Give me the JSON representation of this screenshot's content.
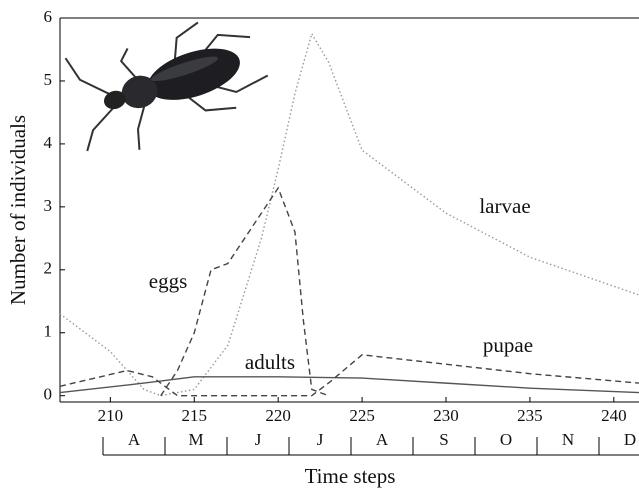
{
  "chart_data": {
    "type": "line",
    "xlabel": "Time steps",
    "ylabel": "Number of individuals",
    "xlim": [
      207,
      241.5
    ],
    "ylim": [
      -0.1,
      6
    ],
    "xticks": [
      210,
      215,
      220,
      225,
      230,
      235,
      240
    ],
    "yticks": [
      0,
      1,
      2,
      3,
      4,
      5,
      6
    ],
    "months": [
      "A",
      "M",
      "J",
      "J",
      "A",
      "S",
      "O",
      "N",
      "D"
    ],
    "series": [
      {
        "name": "larvae",
        "color": "#999999",
        "style": "dotted",
        "x": [
          207,
          210,
          212,
          213,
          215,
          217,
          219,
          220,
          221,
          222,
          223,
          225,
          230,
          235,
          241.5
        ],
        "values": [
          1.3,
          0.7,
          0.1,
          0,
          0.1,
          0.8,
          2.5,
          3.6,
          4.8,
          5.75,
          5.3,
          3.9,
          2.9,
          2.2,
          1.6
        ]
      },
      {
        "name": "eggs",
        "color": "#444444",
        "style": "dashed",
        "x": [
          213,
          214,
          215,
          216,
          217,
          219,
          220,
          221,
          221.5,
          222,
          223
        ],
        "values": [
          0,
          0.4,
          1.0,
          2.0,
          2.1,
          2.9,
          3.3,
          2.6,
          1.2,
          0.1,
          0
        ]
      },
      {
        "name": "adults",
        "color": "#555555",
        "style": "solid",
        "x": [
          207,
          212,
          215,
          220,
          225,
          230,
          235,
          241.5
        ],
        "values": [
          0.05,
          0.2,
          0.3,
          0.3,
          0.28,
          0.2,
          0.12,
          0.05
        ]
      },
      {
        "name": "pupae",
        "color": "#444444",
        "style": "dashed",
        "x": [
          207,
          211,
          212.5,
          214,
          222,
          223,
          225,
          230,
          235,
          241.5
        ],
        "values": [
          0.15,
          0.4,
          0.3,
          0,
          0,
          0.2,
          0.65,
          0.5,
          0.35,
          0.2
        ]
      }
    ]
  }
}
